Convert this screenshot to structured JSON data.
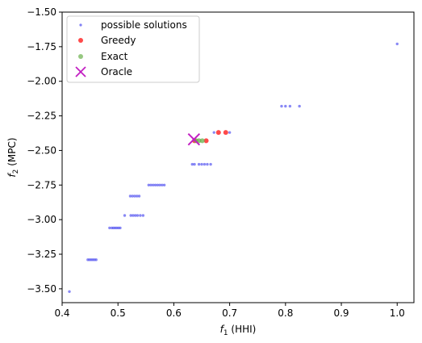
{
  "chart_data": {
    "type": "scatter",
    "xlabel_main": "f",
    "xlabel_sub": "1",
    "xlabel_rest": " (HHI)",
    "ylabel_main": "f",
    "ylabel_sub": "2",
    "ylabel_rest": " (MPC)",
    "xlim": [
      0.4,
      1.03
    ],
    "ylim": [
      -3.6,
      -1.5
    ],
    "xticks": [
      0.4,
      0.5,
      0.6,
      0.7,
      0.8,
      0.9,
      1.0
    ],
    "xtick_labels": [
      "0.4",
      "0.5",
      "0.6",
      "0.7",
      "0.8",
      "0.9",
      "1.0"
    ],
    "yticks": [
      -1.5,
      -1.75,
      -2.0,
      -2.25,
      -2.5,
      -2.75,
      -3.0,
      -3.25,
      -3.5
    ],
    "ytick_labels": [
      "−1.50",
      "−1.75",
      "−2.00",
      "−2.25",
      "−2.50",
      "−2.75",
      "−3.00",
      "−3.25",
      "−3.50"
    ],
    "legend_position": "upper-left",
    "series": [
      {
        "name": "possible solutions",
        "marker": "dot-small",
        "color": "#4a4af0",
        "points": [
          [
            0.413,
            -3.52
          ],
          [
            0.446,
            -3.29
          ],
          [
            0.449,
            -3.29
          ],
          [
            0.452,
            -3.29
          ],
          [
            0.455,
            -3.29
          ],
          [
            0.458,
            -3.29
          ],
          [
            0.461,
            -3.29
          ],
          [
            0.485,
            -3.06
          ],
          [
            0.489,
            -3.06
          ],
          [
            0.492,
            -3.06
          ],
          [
            0.495,
            -3.06
          ],
          [
            0.498,
            -3.06
          ],
          [
            0.501,
            -3.06
          ],
          [
            0.504,
            -3.06
          ],
          [
            0.512,
            -2.97
          ],
          [
            0.523,
            -2.97
          ],
          [
            0.527,
            -2.97
          ],
          [
            0.531,
            -2.97
          ],
          [
            0.535,
            -2.97
          ],
          [
            0.54,
            -2.97
          ],
          [
            0.545,
            -2.97
          ],
          [
            0.522,
            -2.83
          ],
          [
            0.526,
            -2.83
          ],
          [
            0.53,
            -2.83
          ],
          [
            0.534,
            -2.83
          ],
          [
            0.538,
            -2.83
          ],
          [
            0.555,
            -2.75
          ],
          [
            0.559,
            -2.75
          ],
          [
            0.563,
            -2.75
          ],
          [
            0.567,
            -2.75
          ],
          [
            0.571,
            -2.75
          ],
          [
            0.575,
            -2.75
          ],
          [
            0.579,
            -2.75
          ],
          [
            0.583,
            -2.75
          ],
          [
            0.633,
            -2.6
          ],
          [
            0.637,
            -2.6
          ],
          [
            0.645,
            -2.6
          ],
          [
            0.65,
            -2.6
          ],
          [
            0.655,
            -2.6
          ],
          [
            0.66,
            -2.6
          ],
          [
            0.666,
            -2.6
          ],
          [
            0.672,
            -2.37
          ],
          [
            0.7,
            -2.37
          ],
          [
            0.793,
            -2.18
          ],
          [
            0.8,
            -2.18
          ],
          [
            0.808,
            -2.18
          ],
          [
            0.825,
            -2.18
          ],
          [
            1.0,
            -1.73
          ]
        ]
      },
      {
        "name": "Greedy",
        "marker": "dot",
        "color": "#ff2a2a",
        "points": [
          [
            0.68,
            -2.37
          ],
          [
            0.693,
            -2.37
          ],
          [
            0.637,
            -2.43
          ],
          [
            0.658,
            -2.43
          ]
        ]
      },
      {
        "name": "Exact",
        "marker": "dot",
        "color": "#6ab04c",
        "points": [
          [
            0.64,
            -2.43
          ],
          [
            0.645,
            -2.43
          ],
          [
            0.651,
            -2.43
          ]
        ]
      },
      {
        "name": "Oracle",
        "marker": "x",
        "color": "#c21ec2",
        "points": [
          [
            0.636,
            -2.42
          ]
        ]
      }
    ]
  }
}
